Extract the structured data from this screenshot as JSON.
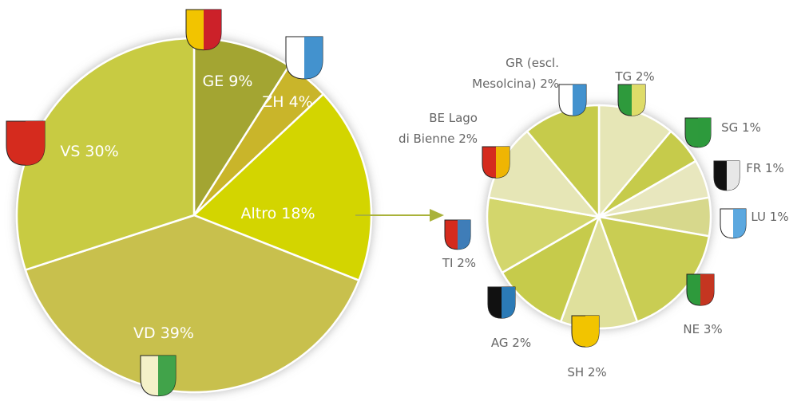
{
  "chart_data": [
    {
      "type": "pie",
      "values": [
        9,
        4,
        18,
        39,
        30
      ],
      "value_labels": [
        [
          "GE 9%"
        ],
        [
          "ZH 4%"
        ],
        [
          "Altro 18%"
        ],
        [
          "VD 39%"
        ],
        [
          "VS 30%"
        ]
      ],
      "colors": [
        "#a3a531",
        "#c9b52c",
        "#d3d500",
        "#c8c04e",
        "#c8cb42"
      ]
    },
    {
      "type": "pie",
      "values": [
        2,
        1,
        1,
        1,
        3,
        2,
        2,
        2,
        2,
        2
      ],
      "value_labels": [
        [
          "TG 2%"
        ],
        [
          "SG 1%"
        ],
        [
          "FR 1%"
        ],
        [
          "LU 1%"
        ],
        [
          "NE 3%"
        ],
        [
          "SH 2%"
        ],
        [
          "AG 2%"
        ],
        [
          "TI 2%"
        ],
        [
          "BE Lago",
          "di Bienne 2%"
        ],
        [
          "GR (escl.",
          "Mesolcina) 2%"
        ]
      ],
      "colors": [
        "#e6e6b6",
        "#c6cb4c",
        "#e8e7be",
        "#d7d88c",
        "#c9cd52",
        "#dfe09c",
        "#c6cb4c",
        "#d3d66c",
        "#e6e6b6",
        "#c6cb4c"
      ]
    }
  ]
}
